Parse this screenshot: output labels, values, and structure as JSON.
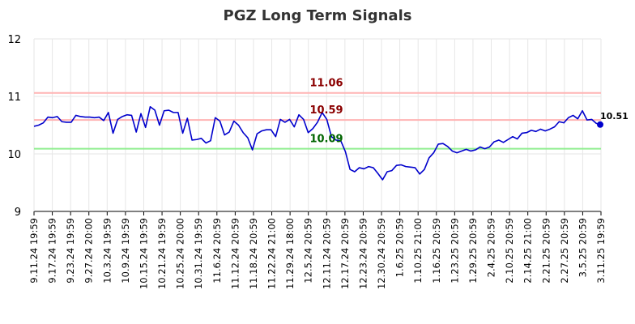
{
  "chart_data": {
    "type": "line",
    "title": "PGZ Long Term Signals",
    "xlabel": "",
    "ylabel": "",
    "ylim": [
      9,
      12
    ],
    "yticks": [
      "9",
      "10",
      "11",
      "12"
    ],
    "grid": true,
    "xtick_labels": [
      "9.11.24 19:59",
      "9.17.24 19:59",
      "9.23.24 19:59",
      "9.27.24 20:00",
      "10.3.24 19:59",
      "10.9.24 19:59",
      "10.15.24 19:59",
      "10.21.24 19:59",
      "10.25.24 20:00",
      "10.31.24 19:59",
      "11.6.24 20:59",
      "11.12.24 20:59",
      "11.18.24 20:59",
      "11.22.24 21:00",
      "11.29.24 18:00",
      "12.5.24 20:59",
      "12.11.24 20:59",
      "12.17.24 20:59",
      "12.23.24 20:59",
      "12.30.24 20:59",
      "1.6.25 20:59",
      "1.10.25 21:00",
      "1.16.25 20:59",
      "1.23.25 20:59",
      "1.29.25 20:59",
      "2.4.25 20:59",
      "2.10.25 20:59",
      "2.14.25 21:00",
      "2.21.25 20:59",
      "2.27.25 20:59",
      "3.5.25 20:59",
      "3.11.25 19:59"
    ],
    "reference_lines": [
      {
        "value": 11.06,
        "label": "11.06",
        "color": "#ffb3b3",
        "label_color": "#8b0000"
      },
      {
        "value": 10.59,
        "label": "10.59",
        "color": "#ffb3b3",
        "label_color": "#8b0000"
      },
      {
        "value": 10.09,
        "label": "10.09",
        "color": "#90ee90",
        "label_color": "#006400"
      }
    ],
    "series": [
      {
        "color": "#0000cc",
        "values": [
          10.48,
          10.5,
          10.54,
          10.64,
          10.63,
          10.65,
          10.56,
          10.55,
          10.55,
          10.67,
          10.65,
          10.64,
          10.64,
          10.63,
          10.64,
          10.58,
          10.72,
          10.36,
          10.6,
          10.65,
          10.68,
          10.67,
          10.38,
          10.7,
          10.46,
          10.82,
          10.76,
          10.5,
          10.75,
          10.76,
          10.72,
          10.72,
          10.36,
          10.62,
          10.24,
          10.25,
          10.27,
          10.19,
          10.23,
          10.63,
          10.57,
          10.33,
          10.38,
          10.57,
          10.5,
          10.37,
          10.28,
          10.07,
          10.35,
          10.4,
          10.42,
          10.42,
          10.3,
          10.6,
          10.55,
          10.6,
          10.47,
          10.68,
          10.6,
          10.37,
          10.44,
          10.55,
          10.72,
          10.6,
          10.3,
          10.24,
          10.23,
          10.04,
          9.73,
          9.69,
          9.76,
          9.74,
          9.78,
          9.76,
          9.66,
          9.55,
          9.69,
          9.71,
          9.8,
          9.81,
          9.78,
          9.77,
          9.76,
          9.65,
          9.73,
          9.93,
          10.02,
          10.17,
          10.18,
          10.13,
          10.05,
          10.02,
          10.05,
          10.08,
          10.05,
          10.07,
          10.12,
          10.09,
          10.12,
          10.21,
          10.24,
          10.2,
          10.25,
          10.3,
          10.26,
          10.36,
          10.37,
          10.41,
          10.39,
          10.43,
          10.4,
          10.43,
          10.47,
          10.56,
          10.54,
          10.63,
          10.67,
          10.61,
          10.75,
          10.59,
          10.6,
          10.53,
          10.51
        ]
      }
    ],
    "last_value_label": "10.51"
  }
}
